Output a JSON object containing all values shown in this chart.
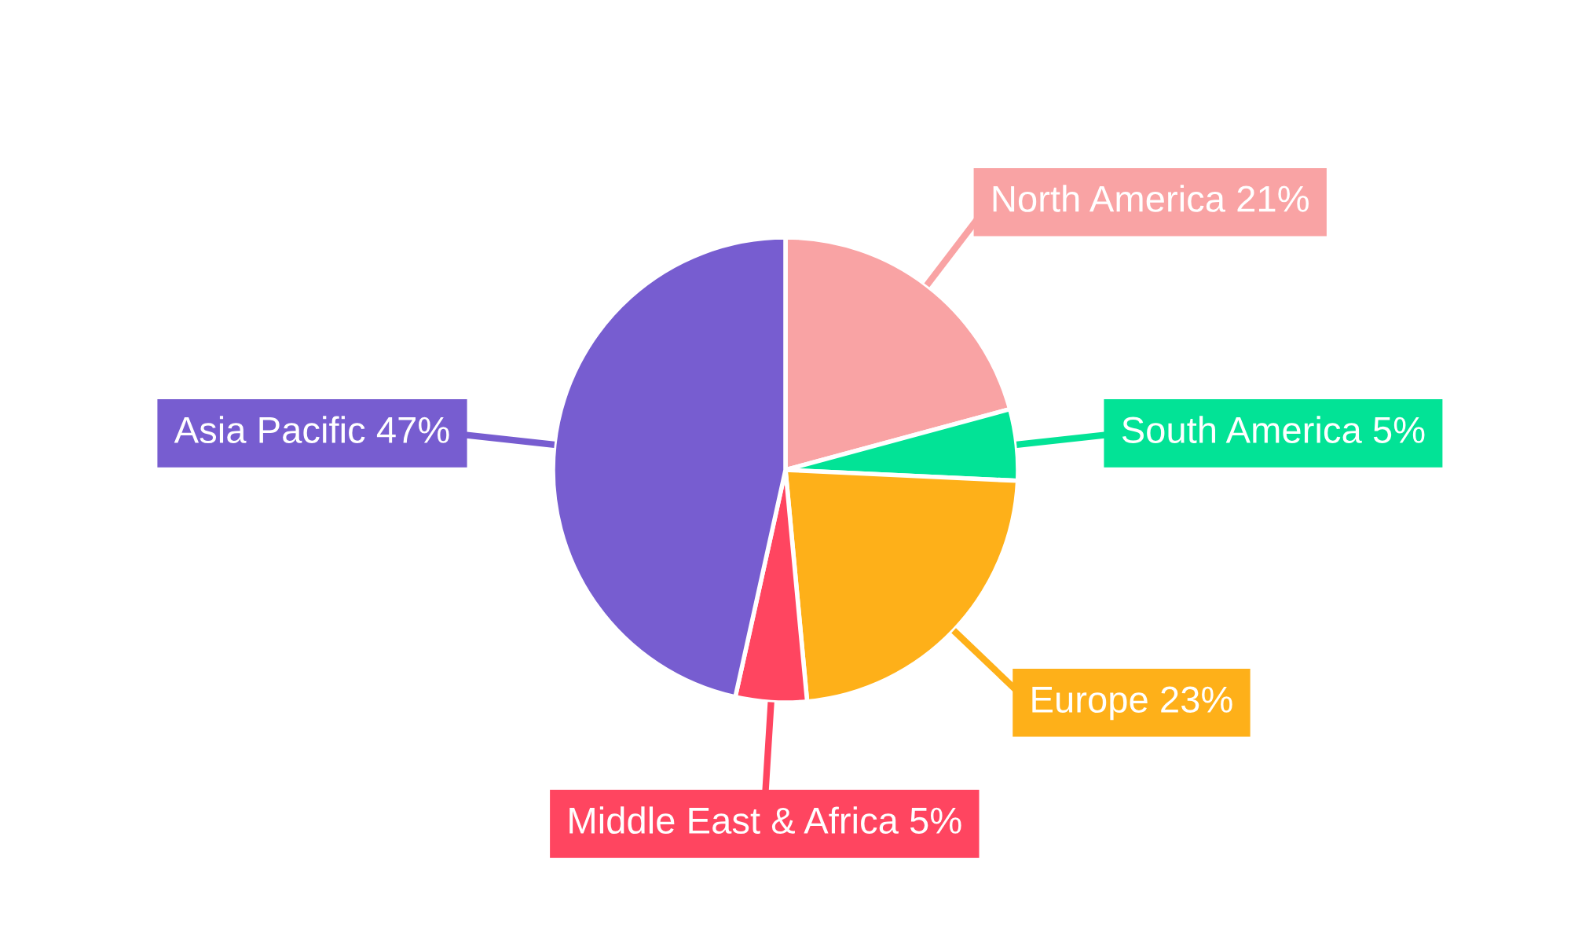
{
  "chart_data": {
    "type": "pie",
    "categories": [
      "North America",
      "South America",
      "Europe",
      "Middle East & Africa",
      "Asia Pacific"
    ],
    "values": [
      21,
      5,
      23,
      5,
      47
    ],
    "value_labels": [
      "21%",
      "5%",
      "23%",
      "5%",
      "47%"
    ],
    "colors": [
      "#f9a3a4",
      "#02e396",
      "#feb019",
      "#ff4560",
      "#775dd0"
    ],
    "legend": false
  }
}
